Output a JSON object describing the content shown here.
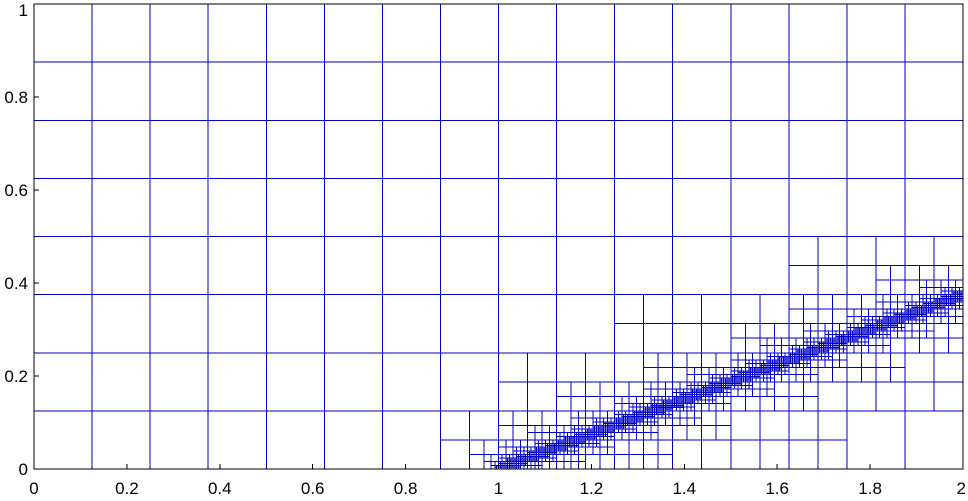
{
  "chart_data": {
    "type": "mesh",
    "title": "",
    "xlabel": "",
    "ylabel": "",
    "xlim": [
      0,
      2
    ],
    "ylim": [
      0,
      1
    ],
    "x_ticks": [
      "0",
      "0.2",
      "0.4",
      "0.6",
      "0.8",
      "1",
      "1.2",
      "1.4",
      "1.6",
      "1.8",
      "2"
    ],
    "y_ticks": [
      "0",
      "0.2",
      "0.4",
      "0.6",
      "0.8",
      "1"
    ],
    "x_tick_values": [
      0,
      0.2,
      0.4,
      0.6,
      0.8,
      1,
      1.2,
      1.4,
      1.6,
      1.8,
      2
    ],
    "y_tick_values": [
      0,
      0.2,
      0.4,
      0.6,
      0.8,
      1
    ],
    "base_cell_size": 0.125,
    "refinement_band": {
      "from": [
        1.0,
        0.0
      ],
      "to": [
        2.0,
        0.375
      ],
      "max_level": 5
    },
    "mesh_color": "#0000c8",
    "grid": false,
    "legend": "none"
  }
}
